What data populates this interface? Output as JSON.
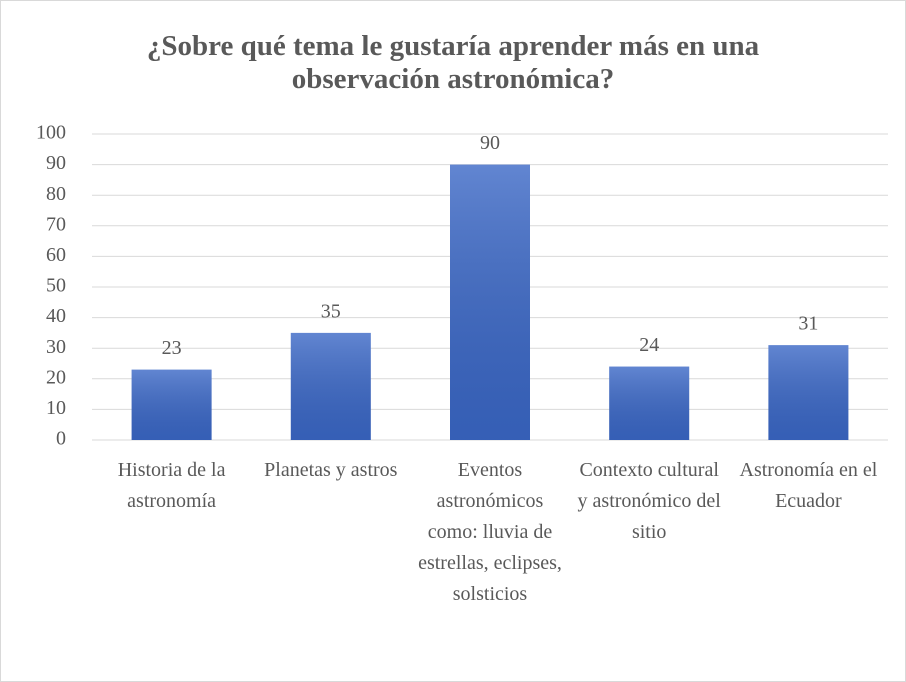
{
  "chart_data": {
    "type": "bar",
    "title": "¿Sobre qué tema le gustaría aprender más en una observación astronómica?",
    "categories": [
      "Historia de la astronomía",
      "Planetas y astros",
      "Eventos astronómicos como: lluvia de estrellas, eclipses, solsticios",
      "Contexto cultural y astronómico del sitio",
      "Astronomía en el Ecuador"
    ],
    "values": [
      23,
      35,
      90,
      24,
      31
    ],
    "color": "#3a67c6",
    "ylim": [
      0,
      100
    ],
    "yticks": [
      0,
      10,
      20,
      30,
      40,
      50,
      60,
      70,
      80,
      90,
      100
    ],
    "grid": true
  }
}
